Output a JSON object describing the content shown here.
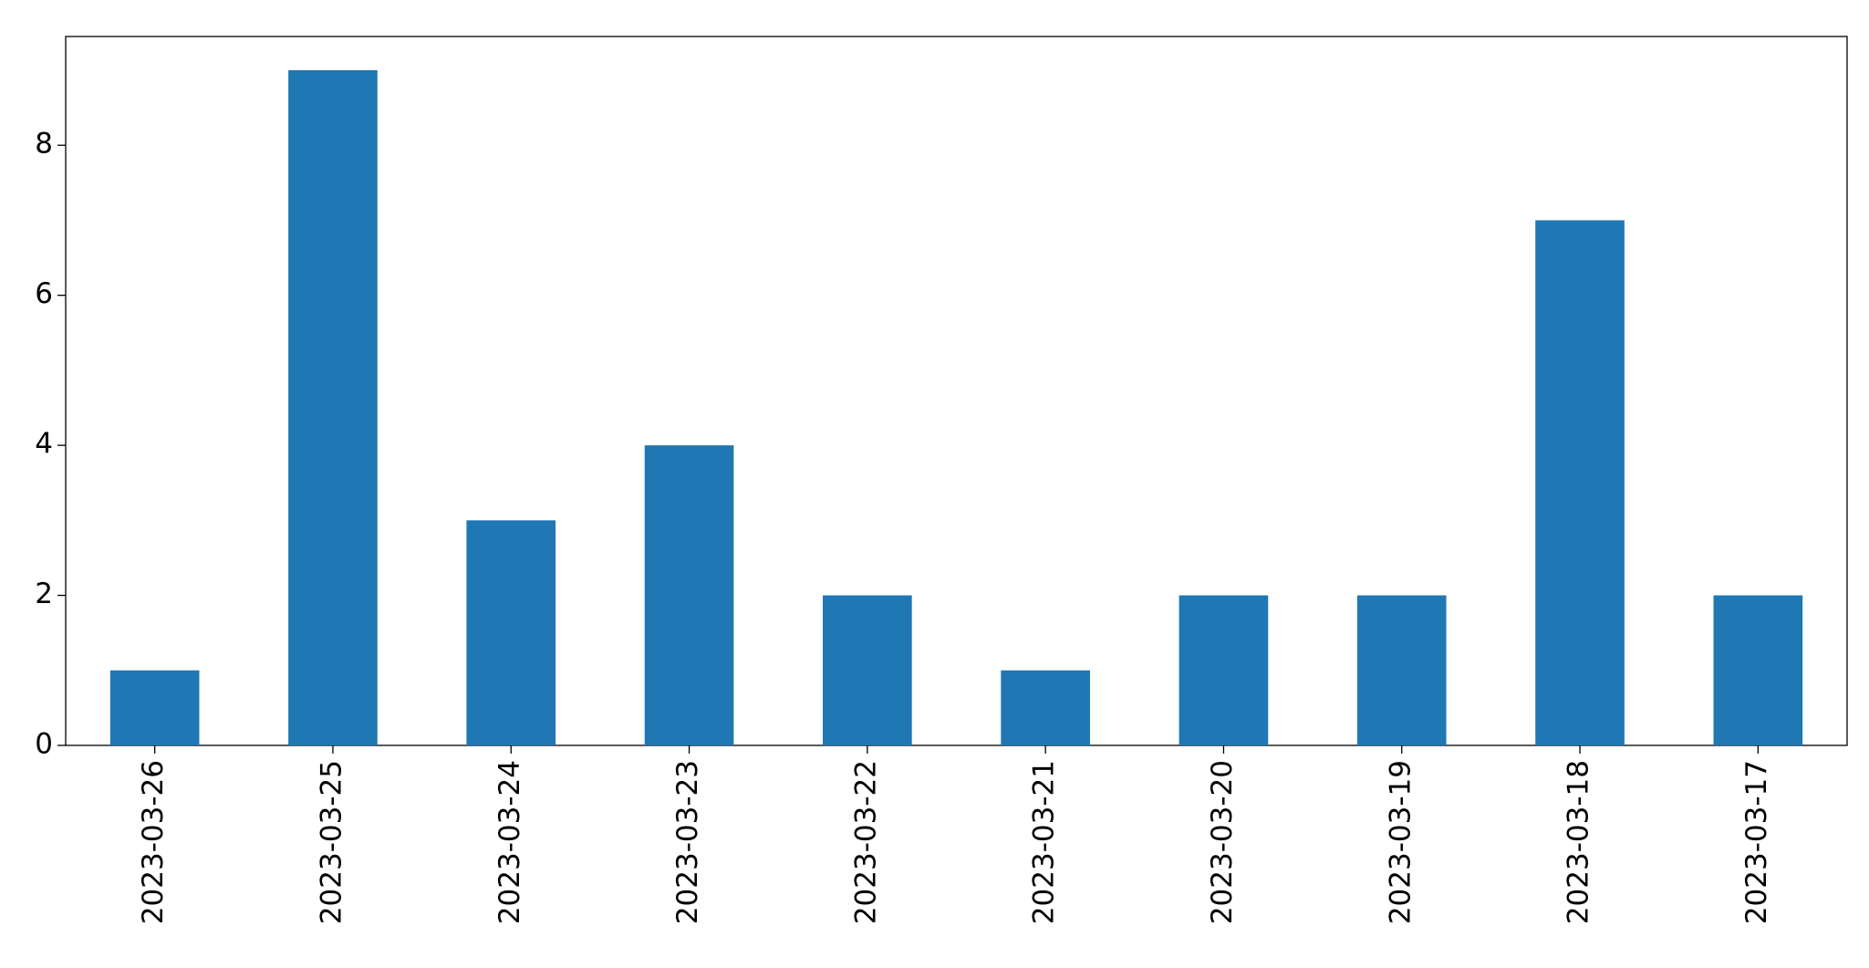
{
  "chart_data": {
    "type": "bar",
    "categories": [
      "2023-03-26",
      "2023-03-25",
      "2023-03-24",
      "2023-03-23",
      "2023-03-22",
      "2023-03-21",
      "2023-03-20",
      "2023-03-19",
      "2023-03-18",
      "2023-03-17"
    ],
    "values": [
      1,
      9,
      3,
      4,
      2,
      1,
      2,
      2,
      7,
      2
    ],
    "color": "#1f77b4",
    "ylim": [
      0,
      9.45
    ],
    "yticks": [
      0,
      2,
      4,
      6,
      8
    ],
    "grid": false
  }
}
